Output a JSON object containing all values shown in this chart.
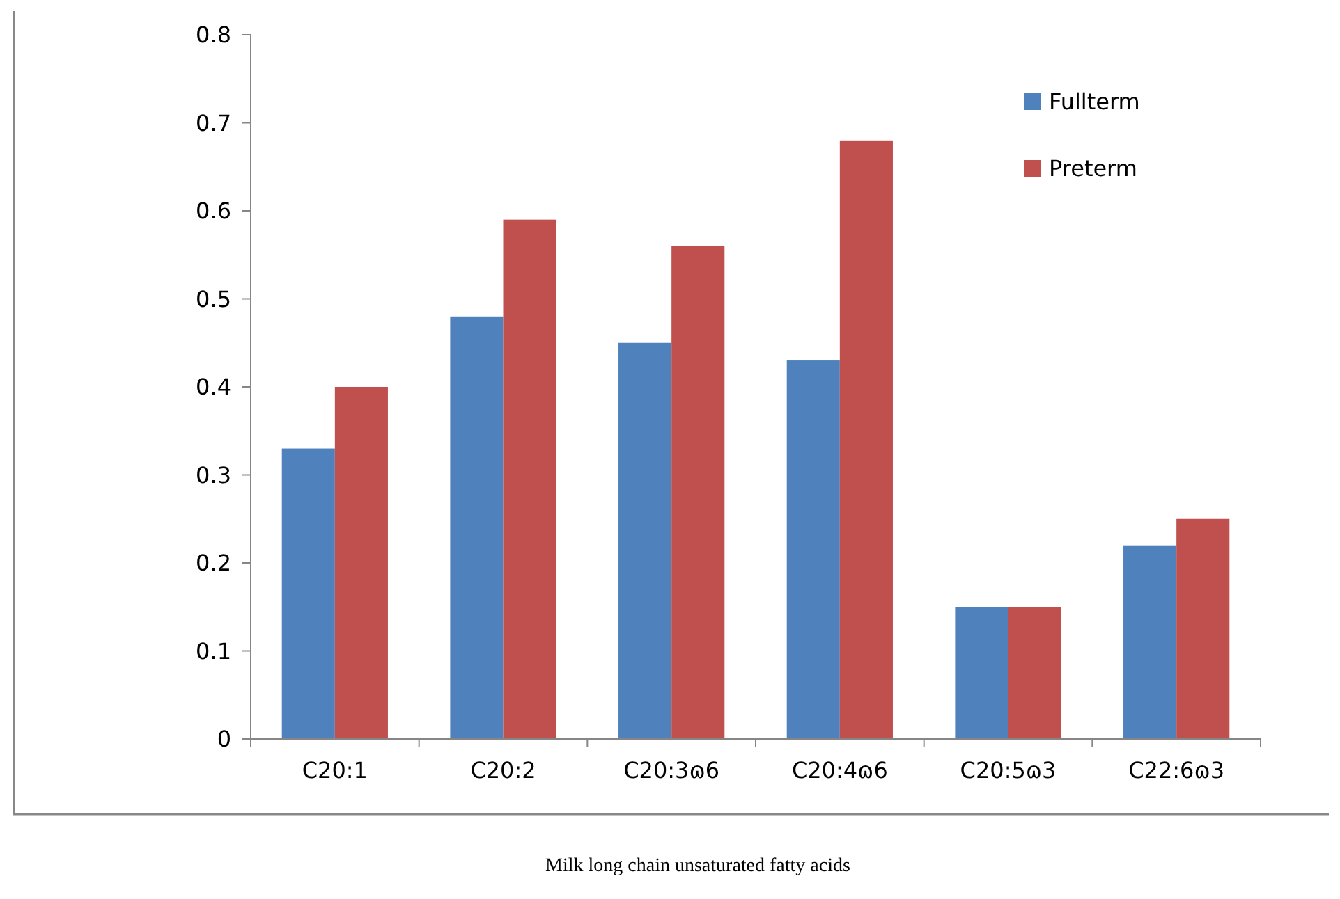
{
  "chart_data": {
    "type": "bar",
    "categories": [
      "C20:1",
      "C20:2",
      "C20:3ɷ6",
      "C20:4ɷ6",
      "C20:5ɷ3",
      "C22:6ɷ3"
    ],
    "series": [
      {
        "name": "Fullterm",
        "color": "#4f81bd",
        "values": [
          0.33,
          0.48,
          0.45,
          0.43,
          0.15,
          0.22
        ]
      },
      {
        "name": "Preterm",
        "color": "#c0504d",
        "values": [
          0.4,
          0.59,
          0.56,
          0.68,
          0.15,
          0.25
        ]
      }
    ],
    "ylim": [
      0,
      0.8
    ],
    "yticks": [
      0,
      0.1,
      0.2,
      0.3,
      0.4,
      0.5,
      0.6,
      0.7,
      0.8
    ],
    "grid": false,
    "legend": "top right",
    "annotations": [
      "Milk long chain unsaturated fatty acids"
    ]
  }
}
